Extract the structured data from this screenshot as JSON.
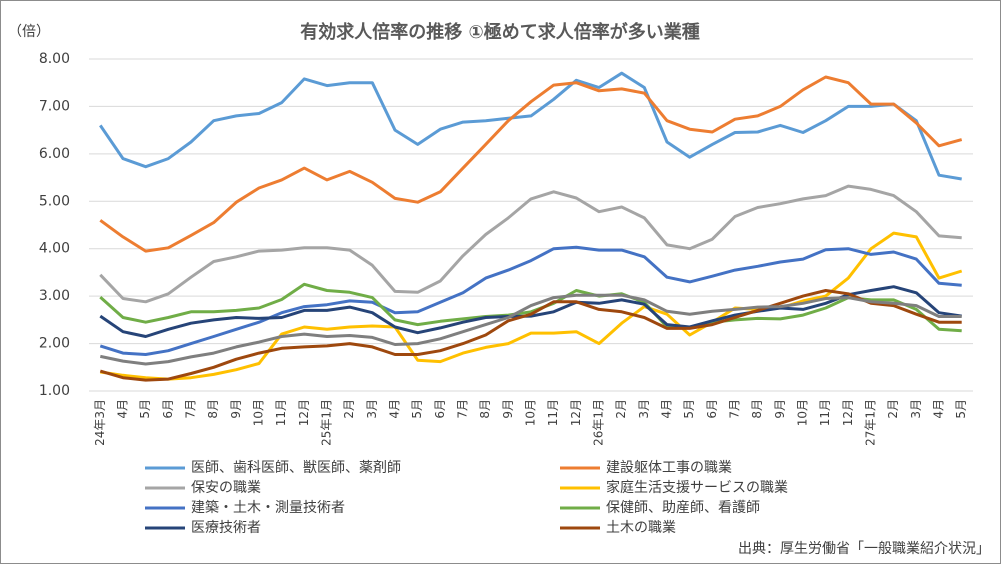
{
  "chart_data": {
    "type": "line",
    "title": "有効求人倍率の推移 ①極めて求人倍率が多い業種",
    "y_label": "（倍）",
    "source": "出典：厚生労働省「一般職業紹介状況」",
    "categories": [
      "24年3月",
      "4月",
      "5月",
      "6月",
      "7月",
      "8月",
      "9月",
      "10月",
      "11月",
      "12月",
      "25年1月",
      "2月",
      "3月",
      "4月",
      "5月",
      "6月",
      "7月",
      "8月",
      "9月",
      "10月",
      "11月",
      "12月",
      "26年1月",
      "2月",
      "3月",
      "4月",
      "5月",
      "6月",
      "7月",
      "8月",
      "9月",
      "10月",
      "11月",
      "12月",
      "27年1月",
      "2月",
      "3月",
      "4月",
      "5月"
    ],
    "ylim": [
      1,
      8
    ],
    "yticks": [
      {
        "value": 1,
        "label": "1.00"
      },
      {
        "value": 2,
        "label": "2.00"
      },
      {
        "value": 3,
        "label": "3.00"
      },
      {
        "value": 4,
        "label": "4.00"
      },
      {
        "value": 5,
        "label": "5.00"
      },
      {
        "value": 6,
        "label": "6.00"
      },
      {
        "value": 7,
        "label": "7.00"
      },
      {
        "value": 8,
        "label": "8.00"
      }
    ],
    "grid": true,
    "series": [
      {
        "name": "医師、歯科医師、獣医師、薬剤師",
        "color": "#5B9BD5",
        "values": [
          6.6,
          5.9,
          5.73,
          5.9,
          6.25,
          6.7,
          6.8,
          6.85,
          7.08,
          7.58,
          7.44,
          7.5,
          7.5,
          6.5,
          6.2,
          6.52,
          6.67,
          6.7,
          6.75,
          6.8,
          7.15,
          7.55,
          7.4,
          7.7,
          7.4,
          6.25,
          5.93,
          6.2,
          6.45,
          6.46,
          6.6,
          6.45,
          6.7,
          7.0,
          7.0,
          7.05,
          6.7,
          5.55,
          5.47
        ]
      },
      {
        "name": "建設躯体工事の職業",
        "color": "#ED7D31",
        "values": [
          4.6,
          4.25,
          3.95,
          4.02,
          4.28,
          4.55,
          4.98,
          5.28,
          5.45,
          5.7,
          5.45,
          5.63,
          5.4,
          5.06,
          4.98,
          5.2,
          5.7,
          6.2,
          6.7,
          7.1,
          7.45,
          7.5,
          7.33,
          7.37,
          7.28,
          6.7,
          6.52,
          6.46,
          6.73,
          6.8,
          7.0,
          7.35,
          7.62,
          7.5,
          7.05,
          7.05,
          6.65,
          6.17,
          6.3
        ]
      },
      {
        "name": "保安の職業",
        "color": "#A5A5A5",
        "values": [
          3.45,
          2.95,
          2.88,
          3.05,
          3.4,
          3.73,
          3.83,
          3.95,
          3.97,
          4.02,
          4.02,
          3.97,
          3.65,
          3.1,
          3.08,
          3.32,
          3.85,
          4.3,
          4.65,
          5.05,
          5.2,
          5.07,
          4.78,
          4.88,
          4.65,
          4.08,
          4.0,
          4.2,
          4.68,
          4.87,
          4.95,
          5.05,
          5.12,
          5.32,
          5.25,
          5.12,
          4.78,
          4.27,
          4.23
        ]
      },
      {
        "name": "家庭生活支援サービスの職業",
        "color": "#FFC000",
        "values": [
          1.4,
          1.33,
          1.28,
          1.25,
          1.28,
          1.35,
          1.45,
          1.58,
          2.2,
          2.35,
          2.3,
          2.35,
          2.37,
          2.35,
          1.65,
          1.62,
          1.8,
          1.92,
          2.0,
          2.22,
          2.22,
          2.25,
          2.0,
          2.43,
          2.78,
          2.62,
          2.18,
          2.45,
          2.75,
          2.72,
          2.75,
          2.9,
          3.0,
          3.38,
          4.0,
          4.33,
          4.25,
          3.38,
          3.53
        ]
      },
      {
        "name": "建築・土木・測量技術者",
        "color": "#4472C4",
        "values": [
          1.95,
          1.8,
          1.77,
          1.85,
          2.0,
          2.15,
          2.3,
          2.45,
          2.65,
          2.78,
          2.82,
          2.9,
          2.87,
          2.65,
          2.67,
          2.87,
          3.07,
          3.38,
          3.55,
          3.75,
          4.0,
          4.03,
          3.97,
          3.97,
          3.83,
          3.4,
          3.3,
          3.42,
          3.55,
          3.63,
          3.72,
          3.78,
          3.98,
          4.0,
          3.88,
          3.93,
          3.78,
          3.27,
          3.23
        ]
      },
      {
        "name": "保健師、助産師、看護師",
        "color": "#70AD47",
        "values": [
          2.98,
          2.55,
          2.45,
          2.55,
          2.67,
          2.67,
          2.7,
          2.75,
          2.93,
          3.25,
          3.12,
          3.08,
          2.97,
          2.5,
          2.4,
          2.47,
          2.52,
          2.57,
          2.6,
          2.67,
          2.85,
          3.12,
          3.0,
          3.05,
          2.87,
          2.35,
          2.33,
          2.45,
          2.5,
          2.53,
          2.52,
          2.6,
          2.75,
          2.97,
          2.92,
          2.92,
          2.72,
          2.3,
          2.27
        ]
      },
      {
        "name": "医療技術者",
        "color": "#264478",
        "values": [
          2.58,
          2.25,
          2.15,
          2.3,
          2.43,
          2.5,
          2.55,
          2.53,
          2.55,
          2.7,
          2.7,
          2.77,
          2.65,
          2.35,
          2.23,
          2.33,
          2.45,
          2.55,
          2.57,
          2.58,
          2.67,
          2.87,
          2.85,
          2.92,
          2.83,
          2.4,
          2.35,
          2.48,
          2.6,
          2.68,
          2.75,
          2.72,
          2.85,
          3.03,
          3.12,
          3.2,
          3.07,
          2.65,
          2.58
        ]
      },
      {
        "name": "土木の職業",
        "color": "#9E480E",
        "values": [
          1.42,
          1.28,
          1.23,
          1.25,
          1.37,
          1.5,
          1.67,
          1.8,
          1.9,
          1.93,
          1.95,
          2.0,
          1.93,
          1.77,
          1.77,
          1.85,
          2.0,
          2.18,
          2.48,
          2.62,
          2.88,
          2.88,
          2.72,
          2.67,
          2.55,
          2.32,
          2.32,
          2.4,
          2.55,
          2.7,
          2.85,
          3.0,
          3.12,
          3.05,
          2.85,
          2.8,
          2.62,
          2.45,
          2.45
        ]
      },
      {
        "name": null,
        "color": "#7F7F7F",
        "values": [
          1.73,
          1.63,
          1.57,
          1.62,
          1.72,
          1.8,
          1.93,
          2.03,
          2.15,
          2.2,
          2.15,
          2.17,
          2.13,
          1.98,
          2.0,
          2.1,
          2.25,
          2.4,
          2.55,
          2.8,
          2.97,
          3.02,
          3.02,
          3.02,
          2.92,
          2.68,
          2.62,
          2.68,
          2.72,
          2.77,
          2.78,
          2.85,
          2.95,
          2.97,
          2.88,
          2.85,
          2.8,
          2.57,
          2.57
        ]
      }
    ]
  }
}
